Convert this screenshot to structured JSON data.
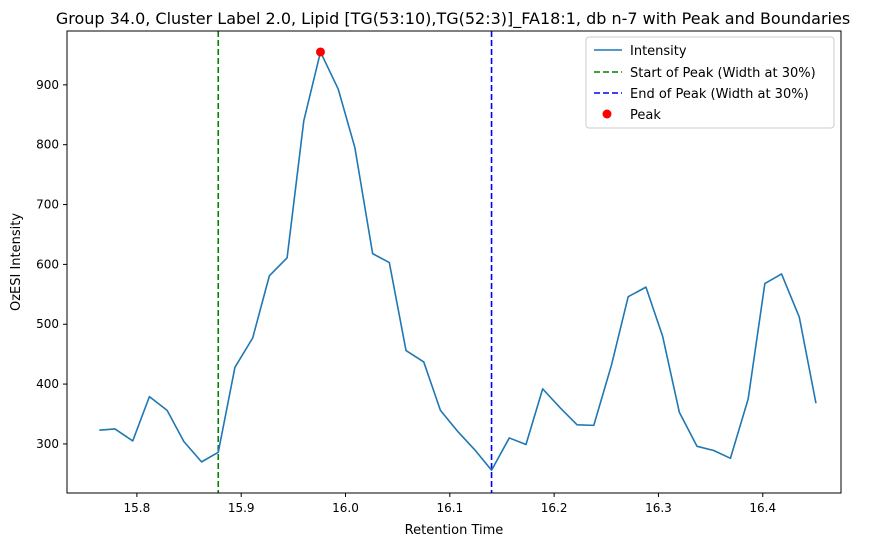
{
  "chart_data": {
    "type": "line",
    "title": "Group 34.0, Cluster Label 2.0, Lipid [TG(53:10),TG(52:3)]_FA18:1, db n-7 with Peak and Boundaries",
    "xlabel": "Retention Time",
    "ylabel": "OzESI Intensity",
    "xlim": [
      15.733,
      16.475
    ],
    "ylim": [
      218,
      990
    ],
    "xticks": [
      15.8,
      15.9,
      16.0,
      16.1,
      16.2,
      16.3,
      16.4
    ],
    "xtick_labels": [
      "15.8",
      "15.9",
      "16.0",
      "16.1",
      "16.2",
      "16.3",
      "16.4"
    ],
    "yticks": [
      300,
      400,
      500,
      600,
      700,
      800,
      900
    ],
    "ytick_labels": [
      "300",
      "400",
      "500",
      "600",
      "700",
      "800",
      "900"
    ],
    "grid": false,
    "legend_position": "top-right",
    "series": [
      {
        "name": "Intensity",
        "color": "#1f77b4",
        "style": "solid",
        "x": [
          15.764,
          15.779,
          15.796,
          15.812,
          15.829,
          15.845,
          15.862,
          15.878,
          15.894,
          15.911,
          15.927,
          15.944,
          15.96,
          15.976,
          15.993,
          16.009,
          16.026,
          16.042,
          16.058,
          16.075,
          16.091,
          16.108,
          16.124,
          16.14,
          16.157,
          16.173,
          16.189,
          16.206,
          16.222,
          16.238,
          16.255,
          16.271,
          16.288,
          16.304,
          16.32,
          16.337,
          16.353,
          16.369,
          16.386,
          16.402,
          16.418,
          16.435,
          16.451
        ],
        "y": [
          323,
          325,
          305,
          379,
          356,
          304,
          270,
          286,
          428,
          477,
          581,
          611,
          840,
          955,
          893,
          795,
          618,
          603,
          456,
          437,
          356,
          320,
          290,
          256,
          310,
          299,
          392,
          360,
          332,
          331,
          432,
          546,
          562,
          480,
          353,
          296,
          289,
          276,
          375,
          568,
          584,
          512,
          368
        ]
      }
    ],
    "vlines": [
      {
        "name": "Start of Peak (Width at 30%)",
        "x": 15.878,
        "color": "#008000",
        "style": "dashed"
      },
      {
        "name": "End of Peak (Width at 30%)",
        "x": 16.14,
        "color": "#0000ff",
        "style": "dashed"
      }
    ],
    "peak": {
      "name": "Peak",
      "x": 15.976,
      "y": 955,
      "color": "#ff0000"
    },
    "legend": [
      {
        "label": "Intensity",
        "kind": "line",
        "color": "#1f77b4"
      },
      {
        "label": "Start of Peak (Width at 30%)",
        "kind": "dashed",
        "color": "#008000"
      },
      {
        "label": "End of Peak (Width at 30%)",
        "kind": "dashed",
        "color": "#0000ff"
      },
      {
        "label": "Peak",
        "kind": "dot",
        "color": "#ff0000"
      }
    ]
  }
}
